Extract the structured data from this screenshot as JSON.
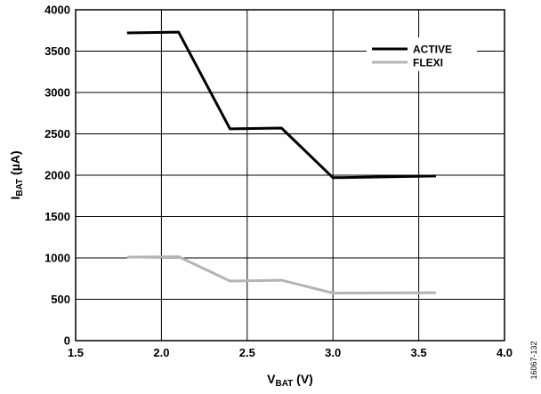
{
  "chart_data": {
    "type": "line",
    "title": "",
    "xlabel": {
      "main": "V",
      "sub": "BAT",
      "suffix": " (V)"
    },
    "ylabel": {
      "main": "I",
      "sub": "BAT",
      "suffix": " (µA)"
    },
    "xlim": [
      1.5,
      4.0
    ],
    "ylim": [
      0,
      4000
    ],
    "xticks": [
      1.5,
      2.0,
      2.5,
      3.0,
      3.5,
      4.0
    ],
    "xtick_labels": [
      "1.5",
      "2.0",
      "2.5",
      "3.0",
      "3.5",
      "4.0"
    ],
    "yticks": [
      0,
      500,
      1000,
      1500,
      2000,
      2500,
      3000,
      3500,
      4000
    ],
    "ytick_labels": [
      "0",
      "500",
      "1000",
      "1500",
      "2000",
      "2500",
      "3000",
      "3500",
      "4000"
    ],
    "grid": true,
    "legend_position": "top-right",
    "series": [
      {
        "name": "ACTIVE",
        "color": "#000000",
        "x": [
          1.8,
          2.1,
          2.4,
          2.7,
          3.0,
          3.6
        ],
        "y": [
          3720,
          3730,
          2560,
          2570,
          1970,
          1990
        ]
      },
      {
        "name": "FLEXI",
        "color": "#b4b4b4",
        "x": [
          1.8,
          2.1,
          2.4,
          2.7,
          3.0,
          3.6
        ],
        "y": [
          1010,
          1015,
          720,
          730,
          575,
          580
        ]
      }
    ]
  },
  "figure_id": "16067-132"
}
